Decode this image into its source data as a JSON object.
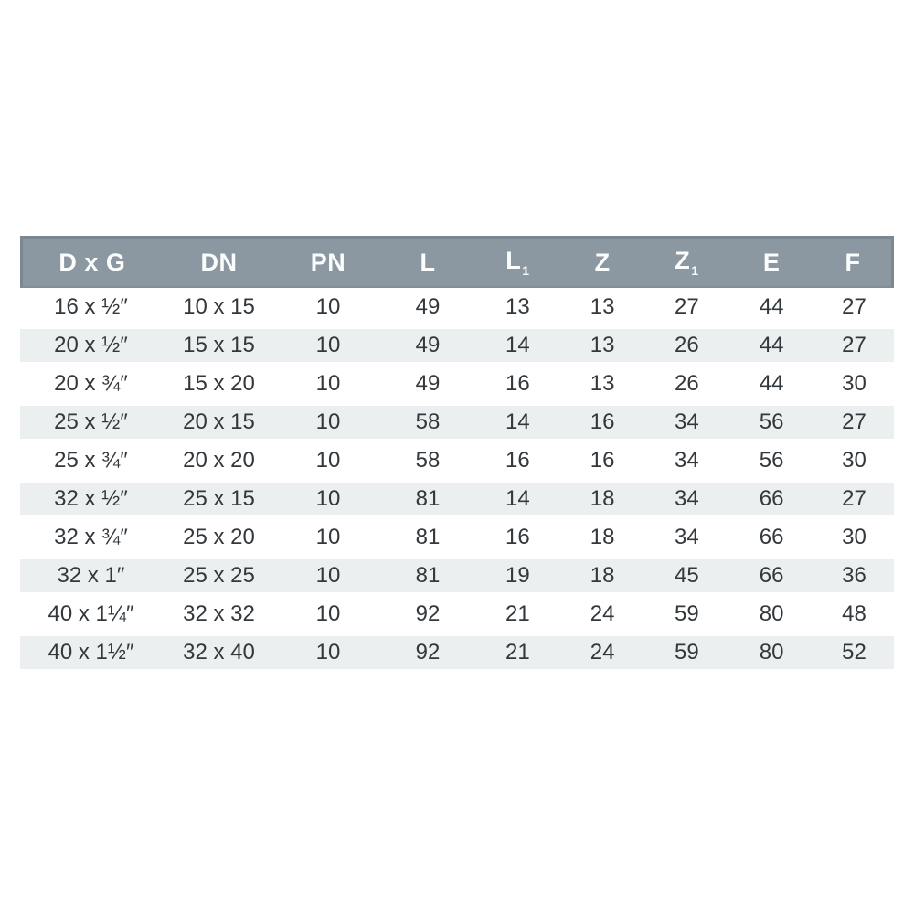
{
  "chart_data": {
    "type": "table",
    "title": "Pipe fitting dimensions table",
    "columns": [
      {
        "key": "dxg",
        "label": "D x G",
        "sub": ""
      },
      {
        "key": "dn",
        "label": "DN",
        "sub": ""
      },
      {
        "key": "pn",
        "label": "PN",
        "sub": ""
      },
      {
        "key": "l",
        "label": "L",
        "sub": ""
      },
      {
        "key": "l1",
        "label": "L",
        "sub": "1"
      },
      {
        "key": "z",
        "label": "Z",
        "sub": ""
      },
      {
        "key": "z1",
        "label": "Z",
        "sub": "1"
      },
      {
        "key": "e",
        "label": "E",
        "sub": ""
      },
      {
        "key": "f",
        "label": "F",
        "sub": ""
      }
    ],
    "rows": [
      [
        "16 x ½″",
        "10 x 15",
        "10",
        "49",
        "13",
        "13",
        "27",
        "44",
        "27"
      ],
      [
        "20 x ½″",
        "15 x 15",
        "10",
        "49",
        "14",
        "13",
        "26",
        "44",
        "27"
      ],
      [
        "20 x ¾″",
        "15 x 20",
        "10",
        "49",
        "16",
        "13",
        "26",
        "44",
        "30"
      ],
      [
        "25 x ½″",
        "20 x 15",
        "10",
        "58",
        "14",
        "16",
        "34",
        "56",
        "27"
      ],
      [
        "25 x ¾″",
        "20 x 20",
        "10",
        "58",
        "16",
        "16",
        "34",
        "56",
        "30"
      ],
      [
        "32 x ½″",
        "25 x 15",
        "10",
        "81",
        "14",
        "18",
        "34",
        "66",
        "27"
      ],
      [
        "32 x ¾″",
        "25 x 20",
        "10",
        "81",
        "16",
        "18",
        "34",
        "66",
        "30"
      ],
      [
        "32 x 1″",
        "25 x 25",
        "10",
        "81",
        "19",
        "18",
        "45",
        "66",
        "36"
      ],
      [
        "40 x 1¼″",
        "32 x 32",
        "10",
        "92",
        "21",
        "24",
        "59",
        "80",
        "48"
      ],
      [
        "40 x 1½″",
        "32 x 40",
        "10",
        "92",
        "21",
        "24",
        "59",
        "80",
        "52"
      ]
    ],
    "layout_hints": {
      "header_style": "gray band with white bold labels",
      "row_striping": "even rows shaded light gray, separated by thin white gaps",
      "alignment": "all cells centered"
    }
  },
  "colors": {
    "header_bg": "#8C98A1",
    "header_border": "#7C8891",
    "header_text": "#FBFCFC",
    "stripe_bg": "#ECEFEF",
    "body_text": "#33383C",
    "page_bg": "#FFFFFF"
  }
}
